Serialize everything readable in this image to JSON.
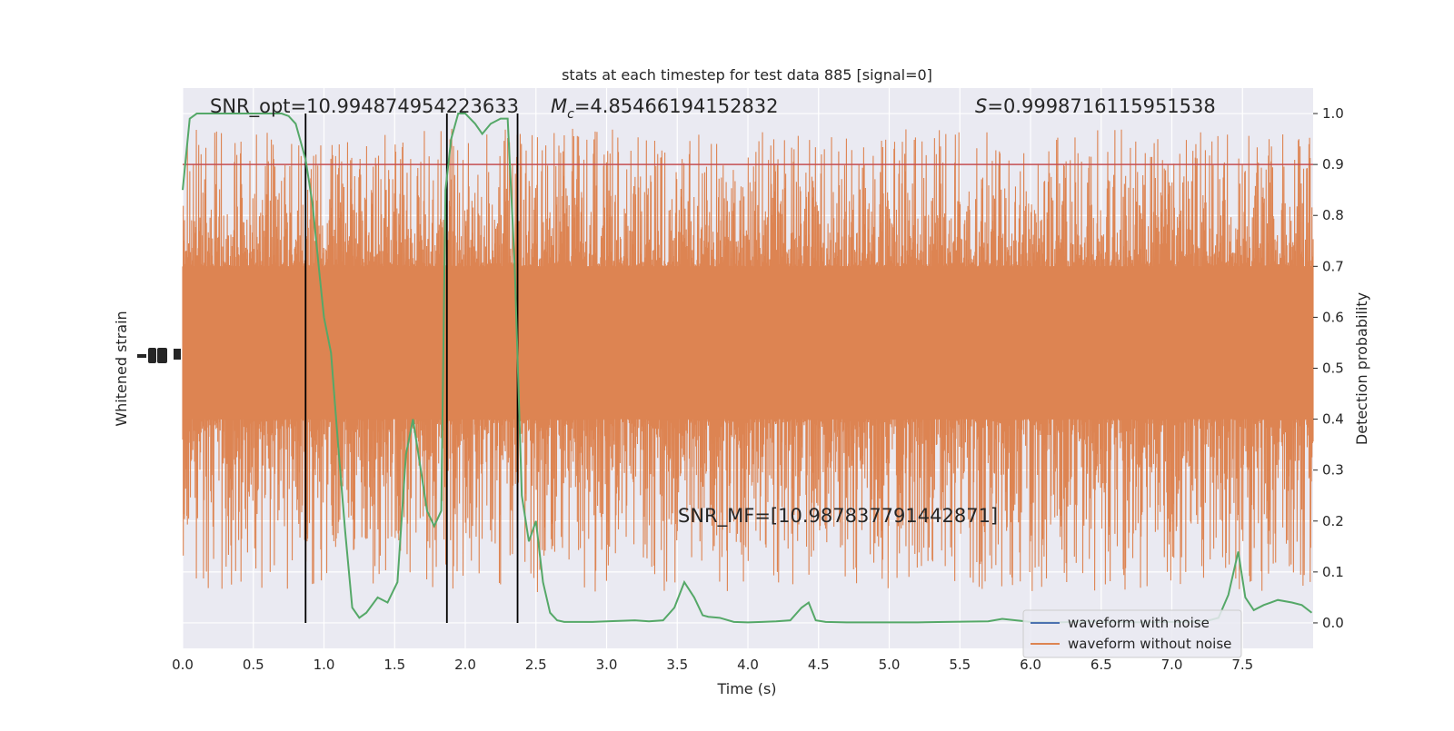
{
  "chart_data": {
    "type": "line",
    "title": "stats at each timestep for test data 885 [signal=0]",
    "xlabel": "Time (s)",
    "ylabel_left": "Whitened strain",
    "ylabel_right": "Detection probability",
    "xlim": [
      0,
      8
    ],
    "ylim_right": [
      -0.05,
      1.05
    ],
    "x_ticks": [
      "0.0",
      "0.5",
      "1.0",
      "1.5",
      "2.0",
      "2.5",
      "3.0",
      "3.5",
      "4.0",
      "4.5",
      "5.0",
      "5.5",
      "6.0",
      "6.5",
      "7.0",
      "7.5"
    ],
    "y_ticks_right": [
      "0.0",
      "0.1",
      "0.2",
      "0.3",
      "0.4",
      "0.5",
      "0.6",
      "0.7",
      "0.8",
      "0.9",
      "1.0"
    ],
    "grid": true,
    "threshold": 0.9,
    "vlines": [
      0.87,
      1.87,
      2.37
    ],
    "annotations": {
      "snr_opt": "SNR_opt=10.994874954223633",
      "mc_prefix": "M",
      "mc_sub": "c",
      "mc_value": "=4.85466194152832",
      "s_prefix": "S",
      "s_value": "=0.9998716115951538",
      "snr_mf": "SNR_MF=[10.987837791442871]"
    },
    "legend": {
      "position": "lower right",
      "entries": [
        "waveform with noise",
        "waveform without noise"
      ]
    },
    "colors": {
      "noise_waveform": "#4c72b0",
      "clean_waveform": "#dd8452",
      "probability": "#55a868",
      "threshold": "#c44e52",
      "vline": "#000000",
      "background": "#eaeaf2"
    },
    "strain_band": {
      "core_low": 0.4,
      "core_high": 0.7,
      "spike_max": 0.97,
      "dip_min": 0.06
    },
    "probability": {
      "x": [
        0.0,
        0.05,
        0.1,
        0.15,
        0.2,
        0.3,
        0.4,
        0.5,
        0.6,
        0.7,
        0.75,
        0.8,
        0.83,
        0.87,
        0.92,
        0.97,
        1.0,
        1.05,
        1.1,
        1.15,
        1.2,
        1.25,
        1.3,
        1.38,
        1.45,
        1.52,
        1.58,
        1.63,
        1.68,
        1.73,
        1.78,
        1.83,
        1.86,
        1.9,
        1.95,
        2.0,
        2.07,
        2.12,
        2.18,
        2.25,
        2.3,
        2.35,
        2.4,
        2.45,
        2.5,
        2.55,
        2.6,
        2.65,
        2.7,
        2.75,
        2.9,
        3.0,
        3.2,
        3.3,
        3.4,
        3.48,
        3.55,
        3.62,
        3.68,
        3.72,
        3.8,
        3.9,
        4.0,
        4.1,
        4.2,
        4.3,
        4.38,
        4.43,
        4.48,
        4.55,
        4.7,
        4.9,
        5.2,
        5.4,
        5.7,
        5.8,
        6.0,
        6.2,
        6.4,
        6.6,
        6.8,
        7.0,
        7.1,
        7.2,
        7.25,
        7.33,
        7.4,
        7.47,
        7.52,
        7.58,
        7.65,
        7.75,
        7.85,
        7.92,
        7.99
      ],
      "y": [
        0.85,
        0.99,
        1.0,
        1.0,
        1.0,
        1.0,
        1.0,
        1.0,
        1.0,
        1.0,
        0.995,
        0.98,
        0.95,
        0.91,
        0.82,
        0.68,
        0.6,
        0.53,
        0.35,
        0.18,
        0.03,
        0.01,
        0.02,
        0.05,
        0.04,
        0.08,
        0.33,
        0.4,
        0.31,
        0.22,
        0.19,
        0.22,
        0.85,
        0.95,
        1.0,
        1.0,
        0.98,
        0.96,
        0.98,
        0.99,
        0.99,
        0.7,
        0.25,
        0.16,
        0.2,
        0.08,
        0.02,
        0.005,
        0.002,
        0.002,
        0.002,
        0.003,
        0.005,
        0.003,
        0.005,
        0.03,
        0.08,
        0.05,
        0.015,
        0.012,
        0.01,
        0.002,
        0.001,
        0.002,
        0.003,
        0.005,
        0.03,
        0.04,
        0.005,
        0.002,
        0.001,
        0.001,
        0.001,
        0.002,
        0.003,
        0.008,
        0.002,
        0.001,
        0.003,
        0.002,
        0.001,
        0.002,
        0.002,
        0.003,
        0.004,
        0.01,
        0.055,
        0.14,
        0.05,
        0.025,
        0.035,
        0.045,
        0.04,
        0.035,
        0.02
      ]
    }
  }
}
